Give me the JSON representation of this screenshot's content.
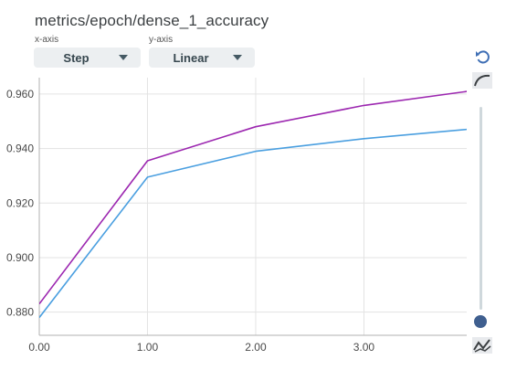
{
  "header": {
    "title": "metrics/epoch/dense_1_accuracy",
    "xaxis_caption": "x-axis",
    "yaxis_caption": "y-axis",
    "xaxis_value": "Step",
    "yaxis_value": "Linear"
  },
  "icons": {
    "reset": "undo-icon",
    "smoothing": "smoothing-curve-icon",
    "bottom": "line-chart-icon"
  },
  "slider": {
    "value": 0
  },
  "chart_data": {
    "type": "line",
    "title": "metrics/epoch/dense_1_accuracy",
    "xlabel": "",
    "ylabel": "",
    "xlim": [
      0,
      3.95
    ],
    "ylim": [
      0.8715,
      0.966
    ],
    "xticks": [
      "0.00",
      "1.00",
      "2.00",
      "3.00"
    ],
    "yticks": [
      "0.880",
      "0.900",
      "0.920",
      "0.940",
      "0.960"
    ],
    "grid": true,
    "series": [
      {
        "color": "#9c27b0",
        "x": [
          0,
          1,
          2,
          3,
          4
        ],
        "y": [
          0.883,
          0.9355,
          0.948,
          0.9558,
          0.9612
        ]
      },
      {
        "color": "#4a9fe0",
        "x": [
          0,
          1,
          2,
          3,
          4
        ],
        "y": [
          0.878,
          0.9295,
          0.939,
          0.9436,
          0.9472
        ]
      }
    ]
  }
}
